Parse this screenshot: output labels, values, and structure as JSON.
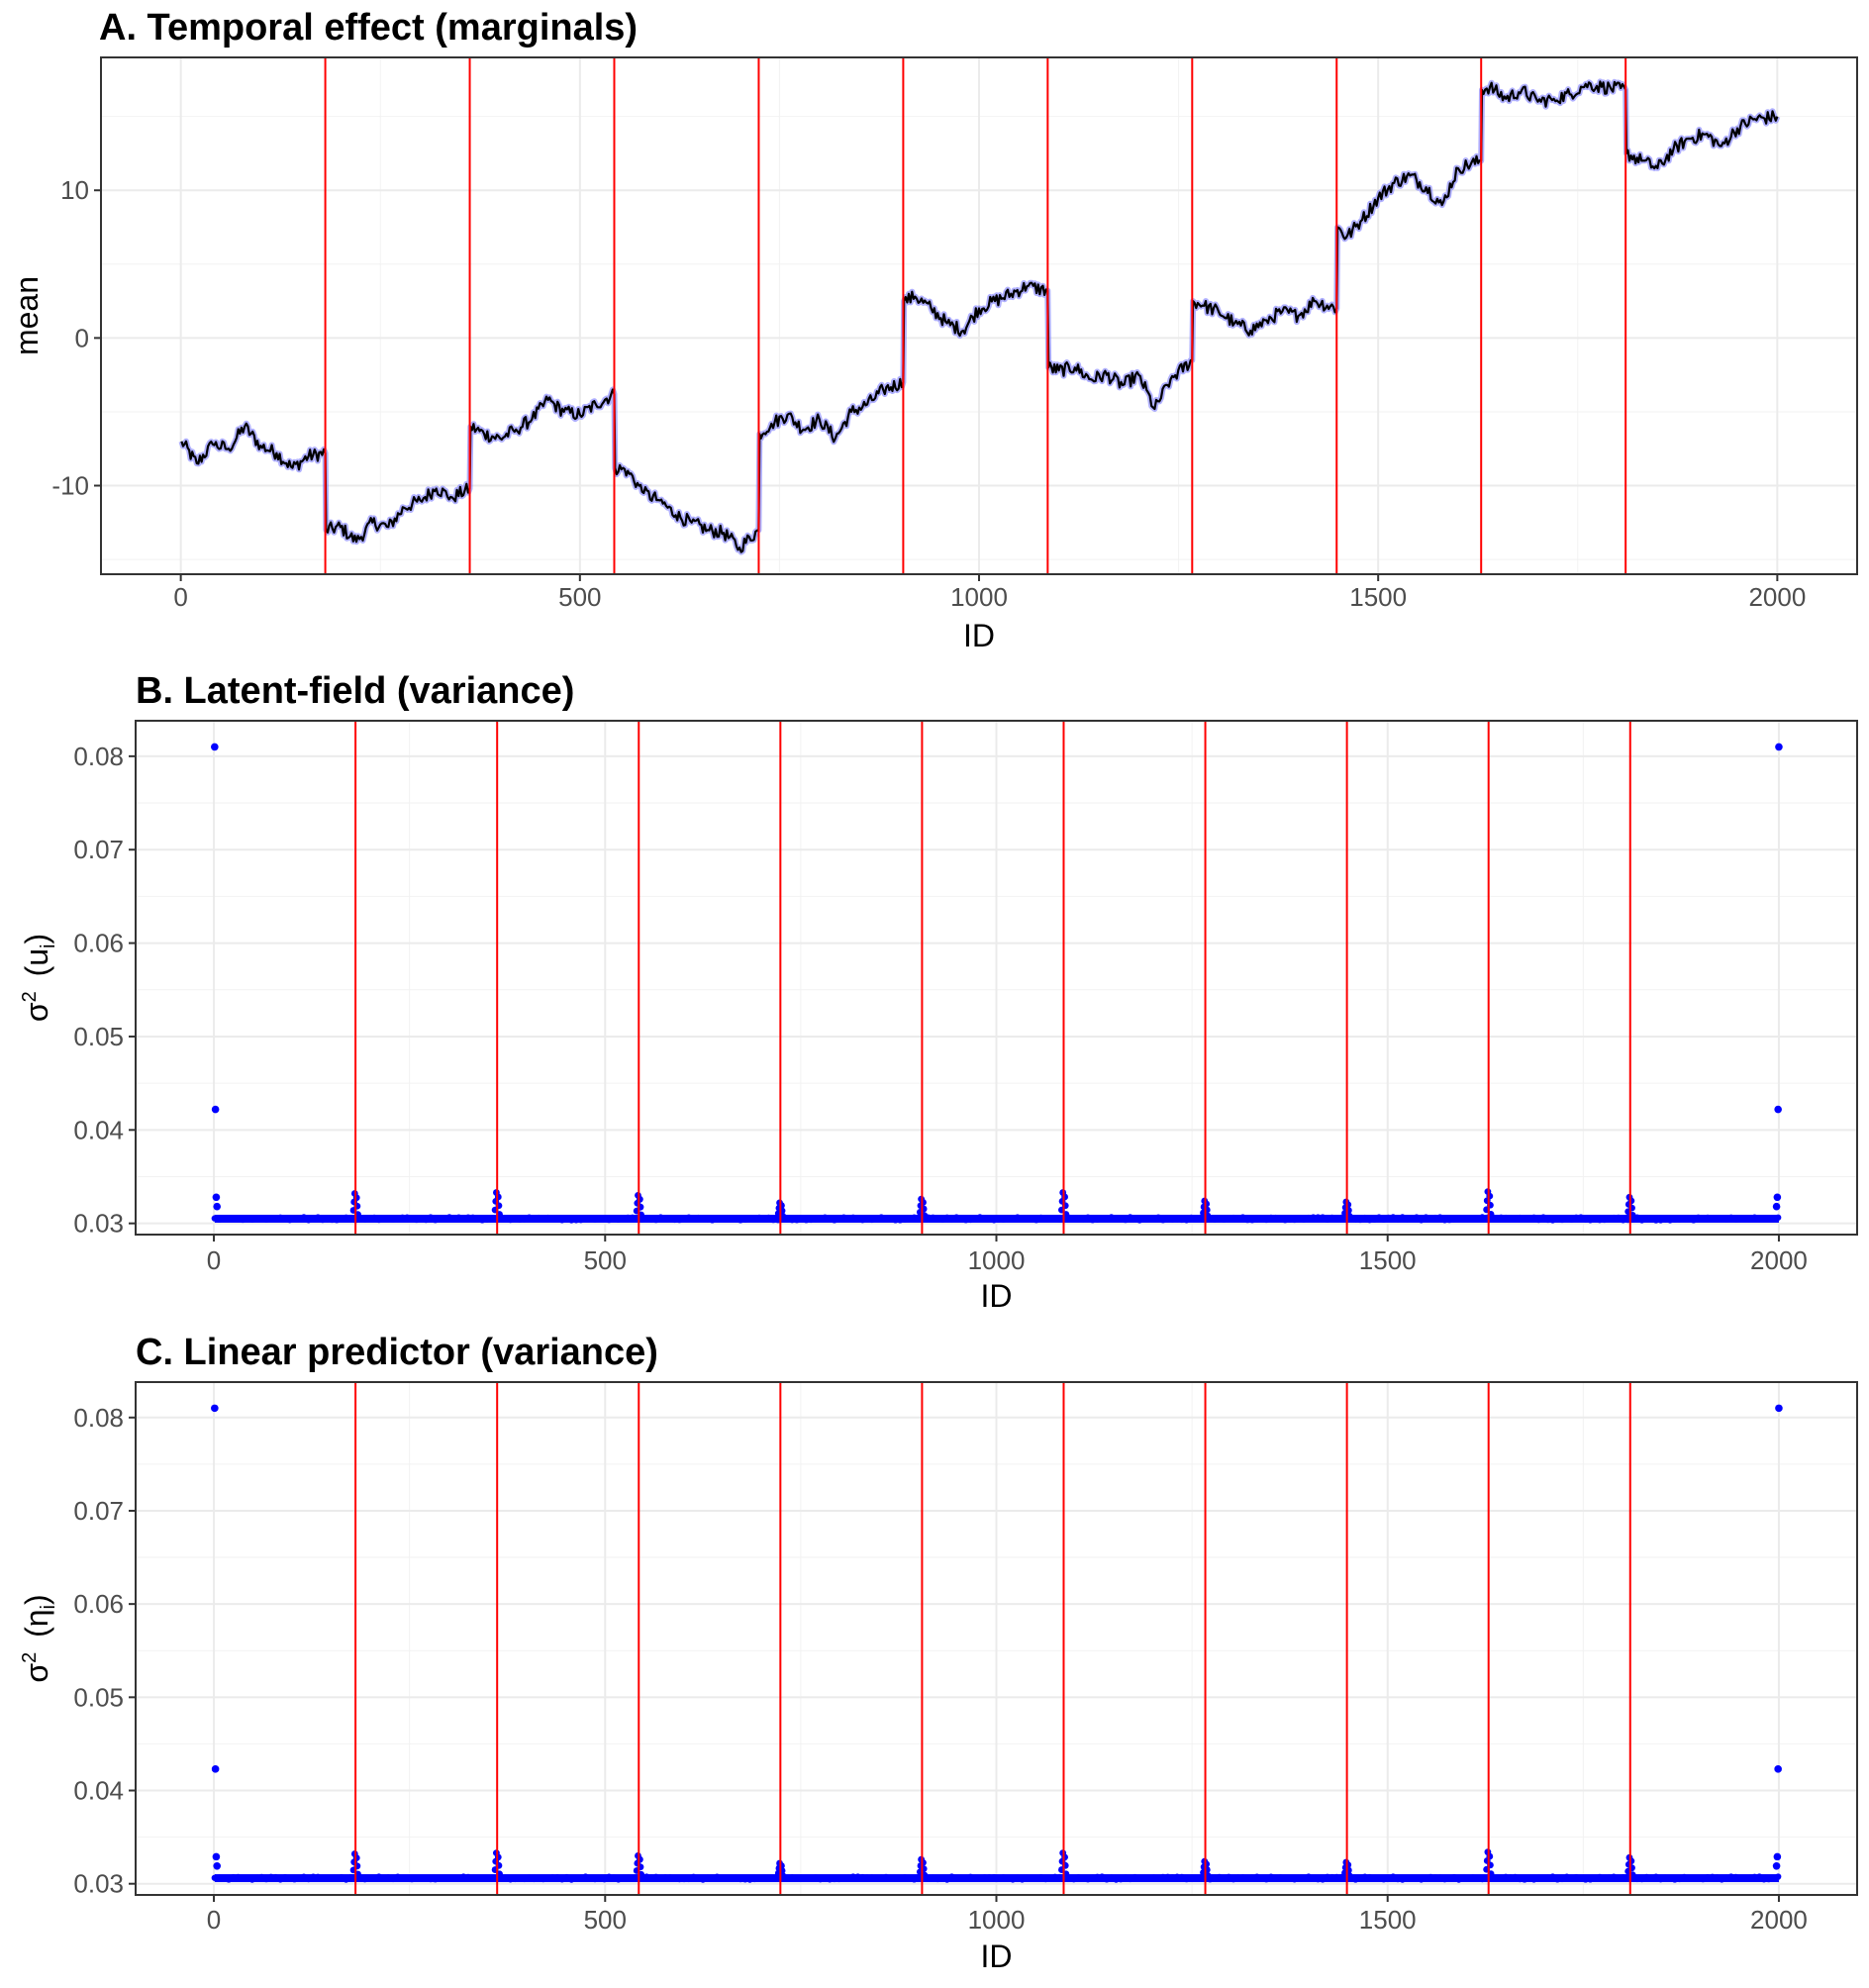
{
  "chart_data": [
    {
      "type": "line",
      "title": "A. Temporal effect (marginals)",
      "xlabel": "ID",
      "ylabel": "mean",
      "xlim": [
        -100,
        2100
      ],
      "ylim": [
        -16,
        19
      ],
      "xticks": [
        0,
        500,
        1000,
        1500,
        2000
      ],
      "xtick_labels": [
        "0",
        "500",
        "1000",
        "1500",
        "2000"
      ],
      "yticks": [
        -10,
        0,
        10
      ],
      "ytick_labels": [
        "-10",
        "0",
        "10"
      ],
      "grid": true,
      "series_color": "#000000",
      "band_color": "#6f6fff",
      "vline_color": "#ff0000",
      "change_points": [
        181,
        362,
        543,
        724,
        905,
        1086,
        1267,
        1448,
        1629,
        1810
      ],
      "series": [
        {
          "x": [
            1,
            20,
            40,
            60,
            80,
            100,
            120,
            140,
            160,
            181,
            182,
            200,
            220,
            240,
            260,
            280,
            300,
            320,
            340,
            362,
            363,
            380,
            400,
            420,
            440,
            460,
            480,
            500,
            520,
            543,
            544,
            560,
            580,
            600,
            620,
            640,
            660,
            680,
            700,
            724,
            725,
            740,
            760,
            780,
            800,
            820,
            840,
            860,
            880,
            905,
            906,
            920,
            940,
            960,
            980,
            1000,
            1020,
            1040,
            1060,
            1086,
            1087,
            1100,
            1120,
            1140,
            1160,
            1180,
            1200,
            1220,
            1240,
            1267,
            1268,
            1280,
            1300,
            1320,
            1340,
            1360,
            1380,
            1400,
            1420,
            1448,
            1449,
            1460,
            1480,
            1500,
            1520,
            1540,
            1560,
            1580,
            1600,
            1629,
            1630,
            1640,
            1660,
            1680,
            1700,
            1720,
            1740,
            1760,
            1780,
            1810,
            1811,
            1830,
            1850,
            1870,
            1890,
            1910,
            1930,
            1950,
            1970,
            2000
          ],
          "values": [
            -7.0,
            -8.5,
            -7.2,
            -7.5,
            -6.0,
            -7.3,
            -7.8,
            -8.8,
            -8.0,
            -7.8,
            -13.0,
            -12.8,
            -13.8,
            -12.5,
            -12.8,
            -11.5,
            -11.0,
            -10.2,
            -10.8,
            -10.2,
            -6.0,
            -6.5,
            -6.8,
            -6.2,
            -5.5,
            -4.2,
            -5.0,
            -5.2,
            -4.5,
            -3.8,
            -8.8,
            -9.0,
            -10.5,
            -11.0,
            -12.0,
            -12.5,
            -13.0,
            -13.2,
            -14.2,
            -13.0,
            -6.5,
            -5.8,
            -5.2,
            -6.2,
            -5.5,
            -6.8,
            -5.0,
            -4.5,
            -3.5,
            -3.0,
            2.5,
            2.8,
            2.0,
            1.0,
            0.5,
            2.0,
            2.5,
            3.0,
            3.5,
            3.2,
            -2.0,
            -2.2,
            -2.0,
            -2.8,
            -2.5,
            -3.2,
            -2.5,
            -4.8,
            -2.8,
            -1.5,
            2.5,
            2.2,
            1.8,
            1.0,
            0.5,
            1.2,
            1.8,
            1.5,
            2.5,
            2.0,
            7.5,
            6.8,
            8.0,
            9.5,
            10.5,
            11.0,
            10.2,
            9.0,
            11.5,
            12.0,
            16.8,
            17.0,
            16.2,
            16.8,
            16.0,
            16.2,
            16.5,
            17.2,
            17.0,
            16.8,
            12.5,
            12.0,
            11.5,
            12.8,
            13.5,
            13.8,
            13.0,
            14.2,
            14.8,
            15.0
          ]
        }
      ]
    },
    {
      "type": "scatter",
      "title": "B. Latent-field (variance)",
      "xlabel": "ID",
      "ylabel_main": "σ",
      "ylabel_sup": "2",
      "ylabel_inner": "(u",
      "ylabel_sub": "i",
      "ylabel_close": ")",
      "xlim": [
        -100,
        2100
      ],
      "ylim": [
        0.0288,
        0.0838
      ],
      "xticks": [
        0,
        500,
        1000,
        1500,
        2000
      ],
      "xtick_labels": [
        "0",
        "500",
        "1000",
        "1500",
        "2000"
      ],
      "yticks": [
        0.03,
        0.04,
        0.05,
        0.06,
        0.07,
        0.08
      ],
      "ytick_labels": [
        "0.03",
        "0.04",
        "0.05",
        "0.06",
        "0.07",
        "0.08"
      ],
      "grid": true,
      "point_color": "#0000ff",
      "vline_color": "#ff0000",
      "change_points": [
        181,
        362,
        543,
        724,
        905,
        1086,
        1267,
        1448,
        1629,
        1810
      ],
      "baseline": 0.0305,
      "outliers": [
        {
          "x": 1,
          "y": 0.081
        },
        {
          "x": 2,
          "y": 0.0422
        },
        {
          "x": 3,
          "y": 0.0328
        },
        {
          "x": 4,
          "y": 0.0318
        },
        {
          "x": 2000,
          "y": 0.081
        },
        {
          "x": 1999,
          "y": 0.0422
        },
        {
          "x": 1998,
          "y": 0.0328
        },
        {
          "x": 1997,
          "y": 0.0318
        }
      ],
      "spike_peaks": [
        0.0332,
        0.0333,
        0.033,
        0.0322,
        0.0326,
        0.0333,
        0.0324,
        0.0323,
        0.0334,
        0.0328
      ]
    },
    {
      "type": "scatter",
      "title": "C. Linear predictor (variance)",
      "xlabel": "ID",
      "ylabel_main": "σ",
      "ylabel_sup": "2",
      "ylabel_inner": "(η",
      "ylabel_sub": "i",
      "ylabel_close": ")",
      "xlim": [
        -100,
        2100
      ],
      "ylim": [
        0.0288,
        0.0838
      ],
      "xticks": [
        0,
        500,
        1000,
        1500,
        2000
      ],
      "xtick_labels": [
        "0",
        "500",
        "1000",
        "1500",
        "2000"
      ],
      "yticks": [
        0.03,
        0.04,
        0.05,
        0.06,
        0.07,
        0.08
      ],
      "ytick_labels": [
        "0.03",
        "0.04",
        "0.05",
        "0.06",
        "0.07",
        "0.08"
      ],
      "grid": true,
      "point_color": "#0000ff",
      "vline_color": "#ff0000",
      "change_points": [
        181,
        362,
        543,
        724,
        905,
        1086,
        1267,
        1448,
        1629,
        1810
      ],
      "baseline": 0.0306,
      "outliers": [
        {
          "x": 1,
          "y": 0.081
        },
        {
          "x": 2,
          "y": 0.0423
        },
        {
          "x": 3,
          "y": 0.0329
        },
        {
          "x": 4,
          "y": 0.0319
        },
        {
          "x": 2000,
          "y": 0.081
        },
        {
          "x": 1999,
          "y": 0.0423
        },
        {
          "x": 1998,
          "y": 0.0329
        },
        {
          "x": 1997,
          "y": 0.0319
        }
      ],
      "spike_peaks": [
        0.0332,
        0.0333,
        0.033,
        0.0322,
        0.0326,
        0.0333,
        0.0324,
        0.0323,
        0.0334,
        0.0328
      ]
    }
  ]
}
